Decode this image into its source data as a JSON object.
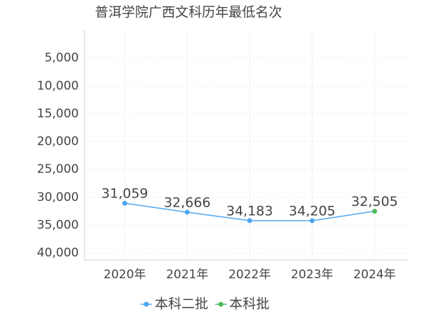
{
  "chart_data": {
    "type": "line",
    "title": "普洱学院广西文科历年最低名次",
    "categories": [
      "2020年",
      "2021年",
      "2022年",
      "2023年",
      "2024年"
    ],
    "series": [
      {
        "name": "本科二批",
        "color": "#4da6f0",
        "values": [
          31059,
          32666,
          34183,
          34205,
          null
        ],
        "value_labels": [
          "31,059",
          "32,666",
          "34,183",
          "34,205",
          null
        ]
      },
      {
        "name": "本科批",
        "color": "#4cbb5c",
        "values": [
          null,
          null,
          null,
          null,
          32505
        ],
        "value_labels": [
          null,
          null,
          null,
          null,
          "32,505"
        ]
      }
    ],
    "ylim": [
      0,
      41250
    ],
    "y_reversed": true,
    "yticks": [
      {
        "value": 5000,
        "label": "5,000"
      },
      {
        "value": 10000,
        "label": "10,000"
      },
      {
        "value": 15000,
        "label": "15,000"
      },
      {
        "value": 20000,
        "label": "20,000"
      },
      {
        "value": 25000,
        "label": "25,000"
      },
      {
        "value": 30000,
        "label": "30,000"
      },
      {
        "value": 35000,
        "label": "35,000"
      },
      {
        "value": 40000,
        "label": "40,000"
      }
    ],
    "grid": true,
    "legend": "bottom"
  }
}
